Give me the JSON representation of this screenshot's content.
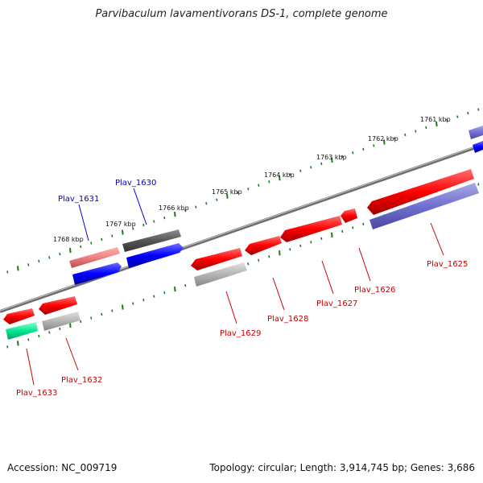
{
  "title": "Parvibaculum lavamentivorans DS-1, complete genome",
  "accession": "Accession: NC_009719",
  "summary": "Topology: circular; Length: 3,914,745 bp; Genes: 3,686",
  "colors": {
    "tick": "#1e7a1e",
    "backbone": "#808080",
    "label_forward": "#0000cc",
    "label_reverse": "#cc0000"
  },
  "kbp_labels": [
    "1768 kbp",
    "1767 kbp",
    "1766 kbp",
    "1765 kbp",
    "1764 kbp",
    "1763 kbp",
    "1762 kbp",
    "1761 kbp"
  ],
  "gene_labels": [
    {
      "id": "Plav_1633",
      "strand": "reverse"
    },
    {
      "id": "Plav_1632",
      "strand": "reverse"
    },
    {
      "id": "Plav_1631",
      "strand": "forward"
    },
    {
      "id": "Plav_1630",
      "strand": "forward"
    },
    {
      "id": "Plav_1629",
      "strand": "reverse"
    },
    {
      "id": "Plav_1628",
      "strand": "reverse"
    },
    {
      "id": "Plav_1627",
      "strand": "reverse"
    },
    {
      "id": "Plav_1626",
      "strand": "reverse"
    },
    {
      "id": "Plav_1625",
      "strand": "reverse"
    }
  ]
}
